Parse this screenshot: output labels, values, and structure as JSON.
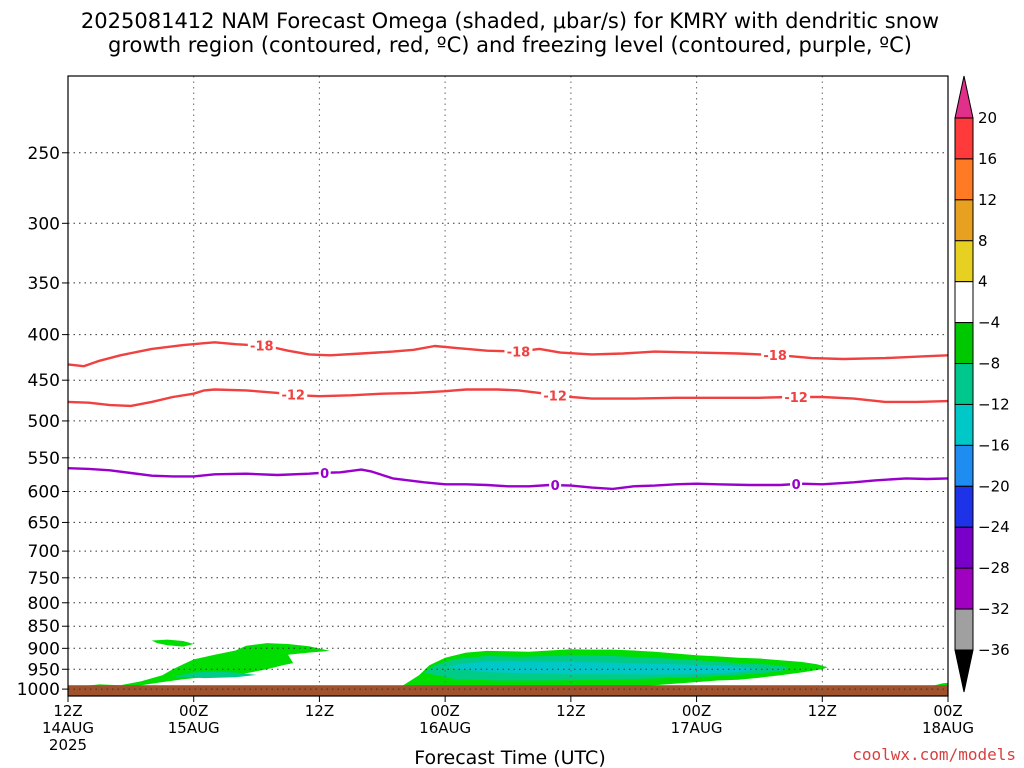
{
  "title": {
    "line1": "2025081412 NAM Forecast Omega (shaded, μbar/s) for KMRY with dendritic snow",
    "line2": "growth region (contoured, red, ºC) and freezing level (contoured, purple, ºC)"
  },
  "credit": "coolwx.com/models",
  "chart_data": {
    "type": "heatmap",
    "title": "2025081412 NAM Forecast Omega (shaded, μbar/s) for KMRY with dendritic snow growth region (contoured, red, ºC) and freezing level (contoured, purple, ºC)",
    "xlabel": "Forecast Time (UTC)",
    "ylabel": "",
    "x_range_hours": [
      0,
      84
    ],
    "y_range_hpa": [
      1018,
      205
    ],
    "y_scale": "log",
    "grid": true,
    "x_ticks": [
      {
        "hour": 0,
        "lines": [
          "12Z",
          "14AUG",
          "2025"
        ]
      },
      {
        "hour": 12,
        "lines": [
          "00Z",
          "15AUG"
        ]
      },
      {
        "hour": 24,
        "lines": [
          "12Z"
        ]
      },
      {
        "hour": 36,
        "lines": [
          "00Z",
          "16AUG"
        ]
      },
      {
        "hour": 48,
        "lines": [
          "12Z"
        ]
      },
      {
        "hour": 60,
        "lines": [
          "00Z",
          "17AUG"
        ]
      },
      {
        "hour": 72,
        "lines": [
          "12Z"
        ]
      },
      {
        "hour": 84,
        "lines": [
          "00Z",
          "18AUG"
        ]
      }
    ],
    "y_ticks": [
      250,
      300,
      350,
      400,
      450,
      500,
      550,
      600,
      650,
      700,
      750,
      800,
      850,
      900,
      950,
      1000
    ],
    "ground_pressure_hpa": 990,
    "ground_color": "#a0522d",
    "colorbar": {
      "labels": [
        "20",
        "16",
        "12",
        "8",
        "4",
        "−4",
        "−8",
        "−12",
        "−16",
        "−20",
        "−24",
        "−28",
        "−32",
        "−36"
      ],
      "colors": [
        "#e0308a",
        "#ff3a3a",
        "#ff7a22",
        "#e8a020",
        "#e8d022",
        "#ffffff",
        "#00c800",
        "#00c88c",
        "#00c8c8",
        "#1e8cf0",
        "#1e32e8",
        "#7800c8",
        "#a000c0",
        "#a0a0a0",
        "#000000"
      ]
    },
    "contours": [
      {
        "name": "-18",
        "color": "#f04040",
        "label": "-18",
        "points": [
          [
            0,
            432
          ],
          [
            1.5,
            434
          ],
          [
            3,
            428
          ],
          [
            5,
            422
          ],
          [
            8,
            415
          ],
          [
            11,
            411
          ],
          [
            13,
            409
          ],
          [
            14,
            408
          ],
          [
            16,
            410
          ],
          [
            19,
            412
          ],
          [
            21,
            417
          ],
          [
            23,
            421
          ],
          [
            25,
            422
          ],
          [
            28,
            420
          ],
          [
            31,
            418
          ],
          [
            33,
            416
          ],
          [
            35,
            412
          ],
          [
            37,
            414
          ],
          [
            40,
            417
          ],
          [
            43,
            418
          ],
          [
            45,
            415
          ],
          [
            47,
            419
          ],
          [
            50,
            421
          ],
          [
            53,
            420
          ],
          [
            56,
            418
          ],
          [
            60,
            419
          ],
          [
            64,
            420
          ],
          [
            68,
            422
          ],
          [
            71,
            425
          ],
          [
            74,
            426
          ],
          [
            78,
            425
          ],
          [
            82,
            423
          ],
          [
            84,
            422
          ]
        ],
        "label_hours": [
          18.5,
          43,
          67.5
        ]
      },
      {
        "name": "-12",
        "color": "#f04040",
        "label": "-12",
        "points": [
          [
            0,
            476
          ],
          [
            2,
            477
          ],
          [
            4,
            480
          ],
          [
            6,
            481
          ],
          [
            8,
            476
          ],
          [
            10,
            470
          ],
          [
            12,
            466
          ],
          [
            13,
            462
          ],
          [
            14,
            461
          ],
          [
            17,
            462
          ],
          [
            20,
            465
          ],
          [
            22,
            468
          ],
          [
            24,
            469
          ],
          [
            27,
            468
          ],
          [
            30,
            466
          ],
          [
            33,
            465
          ],
          [
            36,
            463
          ],
          [
            38,
            461
          ],
          [
            41,
            461
          ],
          [
            43,
            462
          ],
          [
            45,
            465
          ],
          [
            47,
            469
          ],
          [
            50,
            472
          ],
          [
            54,
            472
          ],
          [
            58,
            471
          ],
          [
            62,
            471
          ],
          [
            66,
            471
          ],
          [
            69,
            470
          ],
          [
            72,
            470
          ],
          [
            75,
            472
          ],
          [
            78,
            476
          ],
          [
            81,
            476
          ],
          [
            84,
            475
          ]
        ],
        "label_hours": [
          21.5,
          46.5,
          69.5
        ]
      },
      {
        "name": "0",
        "color": "#9900cc",
        "label": "0",
        "points": [
          [
            0,
            565
          ],
          [
            2,
            566
          ],
          [
            4,
            568
          ],
          [
            6,
            572
          ],
          [
            8,
            576
          ],
          [
            10,
            577
          ],
          [
            12,
            577
          ],
          [
            14,
            574
          ],
          [
            17,
            573
          ],
          [
            20,
            575
          ],
          [
            23,
            573
          ],
          [
            24,
            572
          ],
          [
            26,
            571
          ],
          [
            28,
            567
          ],
          [
            29,
            570
          ],
          [
            31,
            580
          ],
          [
            34,
            586
          ],
          [
            36,
            589
          ],
          [
            38,
            589
          ],
          [
            40,
            590
          ],
          [
            42,
            592
          ],
          [
            44,
            592
          ],
          [
            46,
            590
          ],
          [
            48,
            591
          ],
          [
            50,
            594
          ],
          [
            52,
            596
          ],
          [
            54,
            592
          ],
          [
            56,
            591
          ],
          [
            58,
            589
          ],
          [
            60,
            588
          ],
          [
            62,
            589
          ],
          [
            65,
            590
          ],
          [
            68,
            590
          ],
          [
            70,
            588
          ],
          [
            72,
            589
          ],
          [
            75,
            586
          ],
          [
            77,
            583
          ],
          [
            80,
            580
          ],
          [
            82,
            581
          ],
          [
            84,
            580
          ]
        ],
        "label_hours": [
          24.5,
          46.5,
          69.5
        ]
      }
    ],
    "omega_regions": [
      {
        "name": "weak ascent (-4 to -8)",
        "color": "#00dd00",
        "points": [
          [
            0.5,
            1000
          ],
          [
            1.5,
            992
          ],
          [
            3,
            988
          ],
          [
            5,
            990
          ],
          [
            7,
            980
          ],
          [
            9,
            965
          ],
          [
            10,
            950
          ],
          [
            11,
            938
          ],
          [
            12,
            926
          ],
          [
            14,
            915
          ],
          [
            16,
            905
          ],
          [
            17,
            894
          ],
          [
            19,
            888
          ],
          [
            21,
            890
          ],
          [
            23,
            895
          ],
          [
            25,
            906
          ],
          [
            23,
            910
          ],
          [
            21,
            915
          ],
          [
            21.5,
            935
          ],
          [
            20.5,
            940
          ],
          [
            19,
            950
          ],
          [
            18,
            955
          ],
          [
            17,
            960
          ],
          [
            15,
            965
          ],
          [
            13,
            970
          ],
          [
            11,
            975
          ],
          [
            9,
            982
          ],
          [
            7,
            990
          ],
          [
            5,
            995
          ],
          [
            3,
            995
          ],
          [
            1,
            1000
          ]
        ]
      },
      {
        "name": "weak ascent west patch",
        "color": "#00dd00",
        "points": [
          [
            8,
            882
          ],
          [
            9.5,
            880
          ],
          [
            11,
            883
          ],
          [
            12,
            890
          ],
          [
            11,
            896
          ],
          [
            9.5,
            893
          ],
          [
            8.5,
            888
          ]
        ]
      },
      {
        "name": "weak ascent (-4 to -8) main",
        "color": "#00dd00",
        "points": [
          [
            30,
            1008
          ],
          [
            32,
            990
          ],
          [
            33.5,
            965
          ],
          [
            34.5,
            940
          ],
          [
            36,
            922
          ],
          [
            38,
            910
          ],
          [
            40,
            906
          ],
          [
            42,
            907
          ],
          [
            44,
            908
          ],
          [
            46,
            905
          ],
          [
            48,
            902
          ],
          [
            50,
            903
          ],
          [
            52,
            903
          ],
          [
            54,
            905
          ],
          [
            56,
            908
          ],
          [
            58,
            912
          ],
          [
            60,
            916
          ],
          [
            62,
            919
          ],
          [
            64,
            922
          ],
          [
            66,
            924
          ],
          [
            68,
            928
          ],
          [
            70,
            932
          ],
          [
            71.5,
            938
          ],
          [
            72.5,
            945
          ],
          [
            72,
            950
          ],
          [
            70,
            958
          ],
          [
            68,
            965
          ],
          [
            66,
            971
          ],
          [
            64,
            976
          ],
          [
            62,
            978
          ],
          [
            60,
            982
          ],
          [
            58,
            986
          ],
          [
            56,
            990
          ],
          [
            54,
            992
          ],
          [
            52,
            993
          ],
          [
            50,
            994
          ],
          [
            48,
            995
          ],
          [
            46,
            998
          ],
          [
            44,
            1002
          ],
          [
            42,
            1004
          ],
          [
            40,
            1006
          ],
          [
            38,
            1007
          ],
          [
            36,
            1007
          ],
          [
            34,
            1008
          ],
          [
            32,
            1008
          ]
        ]
      },
      {
        "name": "east edge ascent",
        "color": "#00dd00",
        "points": [
          [
            80.5,
            1005
          ],
          [
            82,
            995
          ],
          [
            83.5,
            985
          ],
          [
            84,
            984
          ],
          [
            84,
            1008
          ]
        ]
      },
      {
        "name": "moderate ascent (-8 to -12)",
        "color": "#00cc88",
        "points": [
          [
            34,
            958
          ],
          [
            35,
            940
          ],
          [
            37,
            925
          ],
          [
            40,
            918
          ],
          [
            43,
            920
          ],
          [
            46,
            918
          ],
          [
            49,
            916
          ],
          [
            52,
            918
          ],
          [
            55,
            921
          ],
          [
            58,
            925
          ],
          [
            61,
            930
          ],
          [
            64,
            935
          ],
          [
            67,
            939
          ],
          [
            69,
            945
          ],
          [
            68,
            955
          ],
          [
            65,
            962
          ],
          [
            61,
            968
          ],
          [
            57,
            972
          ],
          [
            53,
            975
          ],
          [
            49,
            977
          ],
          [
            45,
            978
          ],
          [
            41,
            978
          ],
          [
            37,
            975
          ]
        ]
      },
      {
        "name": "moderate ascent west",
        "color": "#00cc88",
        "points": [
          [
            10,
            968
          ],
          [
            12,
            958
          ],
          [
            14,
            955
          ],
          [
            16,
            958
          ],
          [
            18,
            964
          ],
          [
            16,
            970
          ],
          [
            13,
            972
          ]
        ]
      },
      {
        "name": "stronger ascent (-12 to -16)",
        "color": "#00c8c8",
        "points": [
          [
            36,
            945
          ],
          [
            38,
            935
          ],
          [
            41,
            930
          ],
          [
            45,
            932
          ],
          [
            48,
            932
          ],
          [
            52,
            934
          ],
          [
            55,
            936
          ],
          [
            58,
            938
          ],
          [
            61,
            940
          ],
          [
            64,
            943
          ],
          [
            66,
            950
          ],
          [
            64,
            957
          ],
          [
            60,
            962
          ],
          [
            56,
            963
          ],
          [
            52,
            962
          ],
          [
            48,
            962
          ],
          [
            44,
            960
          ],
          [
            40,
            957
          ]
        ]
      }
    ]
  }
}
